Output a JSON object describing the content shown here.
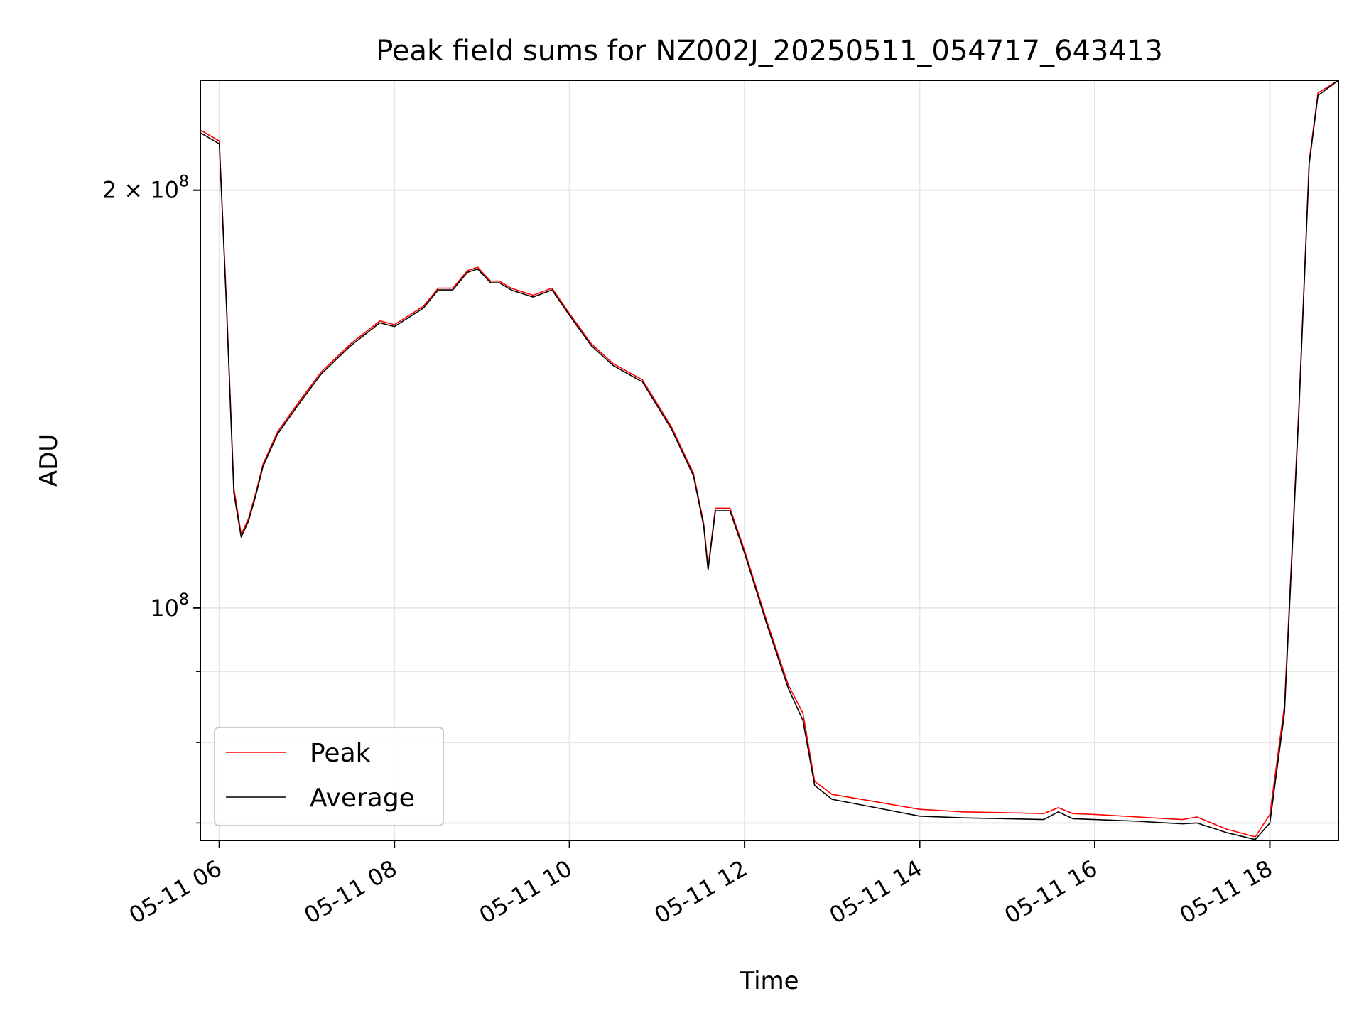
{
  "chart_data": {
    "type": "line",
    "title": "Peak field sums for NZ002J_20250511_054717_643413",
    "xlabel": "Time",
    "ylabel": "ADU",
    "x_scale": "time",
    "y_scale": "log",
    "xlim": [
      "05-11 05:47",
      "05-11 18:47"
    ],
    "ylim": [
      68000000,
      240000000
    ],
    "x_ticks": [
      {
        "value": "05-11 06:00",
        "label": "05-11 06"
      },
      {
        "value": "05-11 08:00",
        "label": "05-11 08"
      },
      {
        "value": "05-11 10:00",
        "label": "05-11 10"
      },
      {
        "value": "05-11 12:00",
        "label": "05-11 12"
      },
      {
        "value": "05-11 14:00",
        "label": "05-11 14"
      },
      {
        "value": "05-11 16:00",
        "label": "05-11 16"
      },
      {
        "value": "05-11 18:00",
        "label": "05-11 18"
      }
    ],
    "y_major_ticks": [
      {
        "value": 100000000,
        "base": "10",
        "exp": "8"
      },
      {
        "value": 200000000,
        "base": "2 × 10",
        "exp": "8"
      }
    ],
    "y_minor_ticks": [
      70000000,
      80000000,
      90000000
    ],
    "grid": true,
    "legend_position": "lower-left",
    "series": [
      {
        "name": "Peak",
        "color": "#ff0000",
        "x": [
          "05-11 05:47",
          "05-11 06:00",
          "05-11 06:05",
          "05-11 06:10",
          "05-11 06:15",
          "05-11 06:20",
          "05-11 06:25",
          "05-11 06:30",
          "05-11 06:40",
          "05-11 06:55",
          "05-11 07:10",
          "05-11 07:30",
          "05-11 07:50",
          "05-11 08:00",
          "05-11 08:20",
          "05-11 08:30",
          "05-11 08:40",
          "05-11 08:50",
          "05-11 08:57",
          "05-11 09:06",
          "05-11 09:12",
          "05-11 09:20",
          "05-11 09:35",
          "05-11 09:48",
          "05-11 10:00",
          "05-11 10:15",
          "05-11 10:30",
          "05-11 10:50",
          "05-11 11:10",
          "05-11 11:25",
          "05-11 11:32",
          "05-11 11:35",
          "05-11 11:40",
          "05-11 11:50",
          "05-11 12:00",
          "05-11 12:15",
          "05-11 12:30",
          "05-11 12:40",
          "05-11 12:48",
          "05-11 13:00",
          "05-11 13:30",
          "05-11 14:00",
          "05-11 14:30",
          "05-11 15:00",
          "05-11 15:25",
          "05-11 15:35",
          "05-11 15:45",
          "05-11 16:00",
          "05-11 16:30",
          "05-11 17:00",
          "05-11 17:10",
          "05-11 17:30",
          "05-11 17:50",
          "05-11 18:00",
          "05-11 18:10",
          "05-11 18:20",
          "05-11 18:27",
          "05-11 18:33",
          "05-11 18:47"
        ],
        "values": [
          221000000,
          217000000,
          165000000,
          122000000,
          113000000,
          116000000,
          121000000,
          127000000,
          134000000,
          141000000,
          148000000,
          155000000,
          161000000,
          160000000,
          165000000,
          170000000,
          170000000,
          175000000,
          176000000,
          172000000,
          172000000,
          170000000,
          168000000,
          170000000,
          163000000,
          155000000,
          150000000,
          146000000,
          135000000,
          125000000,
          115000000,
          107000000,
          118000000,
          118000000,
          110000000,
          98000000,
          88000000,
          84000000,
          75000000,
          73400000,
          72500000,
          71600000,
          71300000,
          71200000,
          71100000,
          71800000,
          71100000,
          71000000,
          70700000,
          70400000,
          70700000,
          69300000,
          68400000,
          71000000,
          85000000,
          140000000,
          210000000,
          235000000,
          240000000
        ]
      },
      {
        "name": "Average",
        "color": "#000000",
        "x": [
          "05-11 05:47",
          "05-11 06:00",
          "05-11 06:05",
          "05-11 06:10",
          "05-11 06:15",
          "05-11 06:20",
          "05-11 06:25",
          "05-11 06:30",
          "05-11 06:40",
          "05-11 06:55",
          "05-11 07:10",
          "05-11 07:30",
          "05-11 07:50",
          "05-11 08:00",
          "05-11 08:20",
          "05-11 08:30",
          "05-11 08:40",
          "05-11 08:50",
          "05-11 08:57",
          "05-11 09:06",
          "05-11 09:12",
          "05-11 09:20",
          "05-11 09:35",
          "05-11 09:48",
          "05-11 10:00",
          "05-11 10:15",
          "05-11 10:30",
          "05-11 10:50",
          "05-11 11:10",
          "05-11 11:25",
          "05-11 11:32",
          "05-11 11:35",
          "05-11 11:40",
          "05-11 11:50",
          "05-11 12:00",
          "05-11 12:15",
          "05-11 12:30",
          "05-11 12:40",
          "05-11 12:48",
          "05-11 13:00",
          "05-11 13:30",
          "05-11 14:00",
          "05-11 14:30",
          "05-11 15:00",
          "05-11 15:25",
          "05-11 15:35",
          "05-11 15:45",
          "05-11 16:00",
          "05-11 16:30",
          "05-11 17:00",
          "05-11 17:10",
          "05-11 17:30",
          "05-11 17:50",
          "05-11 18:00",
          "05-11 18:10",
          "05-11 18:20",
          "05-11 18:27",
          "05-11 18:33",
          "05-11 18:47"
        ],
        "values": [
          220000000,
          216000000,
          164000000,
          121000000,
          112500000,
          115500000,
          120500000,
          126500000,
          133500000,
          140500000,
          147500000,
          154500000,
          160500000,
          159500000,
          164500000,
          169500000,
          169500000,
          174500000,
          175500000,
          171500000,
          171500000,
          169500000,
          167500000,
          169500000,
          162500000,
          154500000,
          149500000,
          145500000,
          134500000,
          124500000,
          114500000,
          106500000,
          117500000,
          117500000,
          109500000,
          97500000,
          87500000,
          83000000,
          74500000,
          72800000,
          71800000,
          70800000,
          70600000,
          70500000,
          70400000,
          71300000,
          70500000,
          70400000,
          70200000,
          69900000,
          70000000,
          68900000,
          68100000,
          70000000,
          84000000,
          139000000,
          209000000,
          234000000,
          240000000
        ]
      }
    ]
  }
}
